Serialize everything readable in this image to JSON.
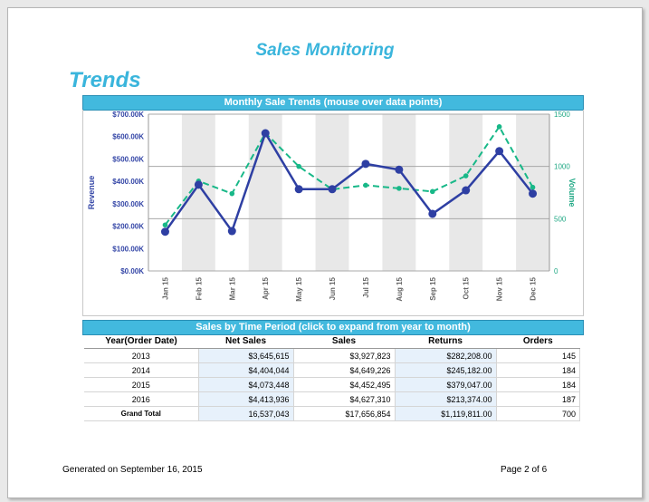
{
  "report": {
    "title": "Sales Monitoring",
    "section_title": "Trends",
    "chart_panel_title": "Monthly Sale Trends  (mouse over data points)",
    "table_panel_title": "Sales by Time Period  (click to expand from year to month)",
    "generated_on": "Generated on  September 16, 2015",
    "page_info": "Page 2 of 6"
  },
  "colors": {
    "accent": "#3ab5dc",
    "header_bg": "#42b9de",
    "revenue_line": "#2e3fa3",
    "volume_line": "#18b888",
    "band": "#e8e8e8",
    "volume_axis": "#1fa884",
    "revenue_axis": "#3345a6"
  },
  "chart_data": {
    "type": "line",
    "categories": [
      "Jan 15",
      "Feb 15",
      "Mar 15",
      "Apr 15",
      "May 15",
      "Jun 15",
      "Jul 15",
      "Aug 15",
      "Sep 15",
      "Oct 15",
      "Nov 15",
      "Dec 15"
    ],
    "series": [
      {
        "name": "",
        "axis": "left",
        "values": [
          175,
          385,
          178,
          615,
          365,
          365,
          478,
          452,
          255,
          360,
          535,
          345
        ]
      },
      {
        "name": "",
        "axis": "right",
        "values": [
          440,
          860,
          740,
          1320,
          1000,
          780,
          820,
          790,
          760,
          910,
          1380,
          800
        ]
      }
    ],
    "ylabel": "Revenue",
    "y2label": "Volume",
    "ylim": [
      0,
      700
    ],
    "y2lim": [
      0,
      1500
    ],
    "yticks": [
      "$0.00K",
      "$100.00K",
      "$200.00K",
      "$300.00K",
      "$400.00K",
      "$500.00K",
      "$600.00K",
      "$700.00K"
    ],
    "y2ticks": [
      "0",
      "500",
      "1000",
      "1500"
    ],
    "grid": true
  },
  "table": {
    "headers": [
      "Year(Order Date)",
      "Net Sales",
      "Sales",
      "Returns",
      "Orders"
    ],
    "rows": [
      {
        "year": "2013",
        "net_sales": "$3,645,615",
        "sales": "$3,927,823",
        "returns": "$282,208.00",
        "orders": "145"
      },
      {
        "year": "2014",
        "net_sales": "$4,404,044",
        "sales": "$4,649,226",
        "returns": "$245,182.00",
        "orders": "184"
      },
      {
        "year": "2015",
        "net_sales": "$4,073,448",
        "sales": "$4,452,495",
        "returns": "$379,047.00",
        "orders": "184"
      },
      {
        "year": "2016",
        "net_sales": "$4,413,936",
        "sales": "$4,627,310",
        "returns": "$213,374.00",
        "orders": "187"
      }
    ],
    "total": {
      "label": "Grand Total",
      "net_sales": "16,537,043",
      "sales": "$17,656,854",
      "returns": "$1,119,811.00",
      "orders": "700"
    }
  }
}
